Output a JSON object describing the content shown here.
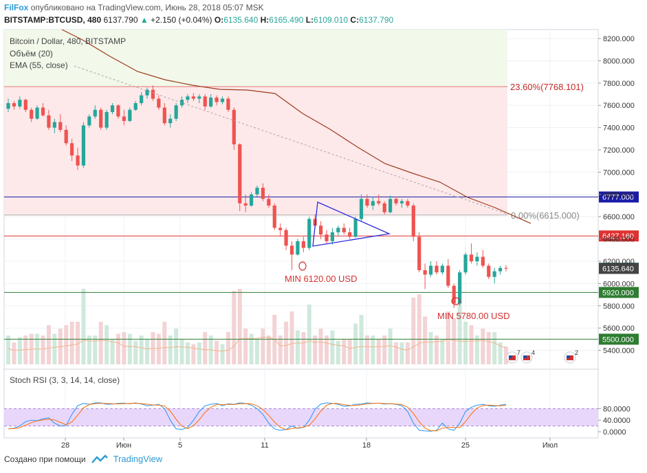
{
  "header": {
    "brand": "FilFox",
    "published": "опубликовано на TradingView.com, Июнь 28, 2018 05:07 MSK",
    "symbol": "BITSTAMP:BTCUSD, 480",
    "last": "6137.790",
    "change": "+2.150 (+0.04%)",
    "o_label": "O:",
    "o": "6135.640",
    "h_label": "H:",
    "h": "6165.490",
    "l_label": "L:",
    "l": "6109.010",
    "c_label": "C:",
    "c": "6137.790"
  },
  "legend": {
    "title": "Bitcoin / Dollar, 480, BITSTAMP",
    "volume": "Объём (20)",
    "ema": "EMA (55, close)"
  },
  "footer": {
    "created": "Создано при помощи",
    "tv": "TradingView"
  },
  "chart_data": {
    "type": "candlestick",
    "title": "Bitcoin / Dollar, 480, BITSTAMP",
    "price_axis": {
      "ticks": [
        "8200.000",
        "8000.000",
        "7800.000",
        "7600.000",
        "7400.000",
        "7200.000",
        "7000.000",
        "6800.000",
        "6600.000",
        "6400.000",
        "6200.000",
        "6000.000",
        "5800.000",
        "5600.000",
        "5400.000"
      ],
      "range": [
        5300,
        8250
      ]
    },
    "x_ticks": [
      "28",
      "Июн",
      "5",
      "11",
      "18",
      "25",
      "Июл"
    ],
    "price_labels": [
      {
        "value": 6777.0,
        "text": "6777.000",
        "color": "#1a1aa8"
      },
      {
        "value": 6427.16,
        "text": "6427.160",
        "color": "#e03131"
      },
      {
        "value": 6137.79,
        "text": "6137.790",
        "color": "#26a69a"
      },
      {
        "value": 6135.64,
        "text": "6135.640",
        "color": "#444444"
      },
      {
        "value": 5920.0,
        "text": "5920.000",
        "color": "#2e7d32"
      },
      {
        "value": 5500.0,
        "text": "5500.000",
        "color": "#2e7d32"
      }
    ],
    "fib_levels": [
      {
        "value": 7768.101,
        "text": "23.60%(7768.101)"
      },
      {
        "value": 6615.0,
        "text": "0.00%(6615.000)"
      }
    ],
    "annotations": [
      {
        "text": "MIN 6120.00 USD",
        "price": 6120
      },
      {
        "text": "MIN 5780.00 USD",
        "price": 5780
      }
    ],
    "events": [
      "7",
      "4",
      "2"
    ],
    "candles": [
      [
        7570,
        7660,
        7540,
        7620
      ],
      [
        7620,
        7640,
        7560,
        7590
      ],
      [
        7590,
        7680,
        7570,
        7650
      ],
      [
        7650,
        7660,
        7540,
        7560
      ],
      [
        7560,
        7580,
        7450,
        7480
      ],
      [
        7480,
        7600,
        7470,
        7580
      ],
      [
        7580,
        7620,
        7500,
        7510
      ],
      [
        7510,
        7560,
        7380,
        7400
      ],
      [
        7400,
        7480,
        7350,
        7450
      ],
      [
        7450,
        7520,
        7360,
        7380
      ],
      [
        7380,
        7420,
        7240,
        7260
      ],
      [
        7260,
        7300,
        7100,
        7150
      ],
      [
        7150,
        7220,
        7020,
        7060
      ],
      [
        7060,
        7450,
        7040,
        7420
      ],
      [
        7420,
        7520,
        7400,
        7500
      ],
      [
        7500,
        7600,
        7480,
        7560
      ],
      [
        7560,
        7580,
        7380,
        7400
      ],
      [
        7400,
        7560,
        7380,
        7540
      ],
      [
        7540,
        7620,
        7520,
        7600
      ],
      [
        7600,
        7610,
        7480,
        7500
      ],
      [
        7500,
        7560,
        7420,
        7460
      ],
      [
        7460,
        7580,
        7450,
        7560
      ],
      [
        7560,
        7640,
        7550,
        7620
      ],
      [
        7620,
        7720,
        7600,
        7690
      ],
      [
        7690,
        7760,
        7660,
        7740
      ],
      [
        7740,
        7780,
        7640,
        7660
      ],
      [
        7660,
        7690,
        7560,
        7580
      ],
      [
        7580,
        7620,
        7420,
        7440
      ],
      [
        7440,
        7520,
        7400,
        7480
      ],
      [
        7480,
        7620,
        7460,
        7600
      ],
      [
        7600,
        7680,
        7580,
        7650
      ],
      [
        7650,
        7700,
        7620,
        7680
      ],
      [
        7680,
        7710,
        7640,
        7660
      ],
      [
        7660,
        7700,
        7620,
        7680
      ],
      [
        7680,
        7700,
        7560,
        7590
      ],
      [
        7590,
        7700,
        7580,
        7670
      ],
      [
        7670,
        7690,
        7600,
        7630
      ],
      [
        7630,
        7680,
        7610,
        7660
      ],
      [
        7660,
        7680,
        7540,
        7560
      ],
      [
        7560,
        7580,
        7200,
        7250
      ],
      [
        7250,
        7260,
        6650,
        6720
      ],
      [
        6720,
        6800,
        6640,
        6700
      ],
      [
        6700,
        6820,
        6690,
        6800
      ],
      [
        6800,
        6880,
        6780,
        6860
      ],
      [
        6860,
        6900,
        6740,
        6760
      ],
      [
        6760,
        6800,
        6680,
        6700
      ],
      [
        6700,
        6720,
        6480,
        6500
      ],
      [
        6500,
        6540,
        6420,
        6480
      ],
      [
        6480,
        6500,
        6300,
        6340
      ],
      [
        6340,
        6380,
        6120,
        6260
      ],
      [
        6260,
        6400,
        6250,
        6380
      ],
      [
        6380,
        6420,
        6280,
        6320
      ],
      [
        6320,
        6600,
        6300,
        6580
      ],
      [
        6580,
        6620,
        6500,
        6520
      ],
      [
        6520,
        6560,
        6400,
        6440
      ],
      [
        6440,
        6480,
        6360,
        6380
      ],
      [
        6380,
        6500,
        6350,
        6460
      ],
      [
        6460,
        6520,
        6430,
        6500
      ],
      [
        6500,
        6540,
        6440,
        6460
      ],
      [
        6460,
        6500,
        6400,
        6420
      ],
      [
        6420,
        6600,
        6410,
        6580
      ],
      [
        6580,
        6800,
        6560,
        6760
      ],
      [
        6760,
        6800,
        6680,
        6700
      ],
      [
        6700,
        6780,
        6660,
        6740
      ],
      [
        6740,
        6800,
        6700,
        6720
      ],
      [
        6720,
        6740,
        6620,
        6640
      ],
      [
        6640,
        6790,
        6630,
        6760
      ],
      [
        6760,
        6780,
        6700,
        6720
      ],
      [
        6720,
        6760,
        6680,
        6740
      ],
      [
        6740,
        6760,
        6680,
        6700
      ],
      [
        6700,
        6720,
        6380,
        6420
      ],
      [
        6420,
        6460,
        6100,
        6120
      ],
      [
        6120,
        6180,
        5950,
        6080
      ],
      [
        6080,
        6200,
        6060,
        6160
      ],
      [
        6160,
        6200,
        6080,
        6100
      ],
      [
        6100,
        6180,
        6080,
        6160
      ],
      [
        6160,
        6220,
        5960,
        5980
      ],
      [
        5980,
        6000,
        5780,
        5820
      ],
      [
        5820,
        6120,
        5800,
        6100
      ],
      [
        6100,
        6280,
        6080,
        6260
      ],
      [
        6260,
        6360,
        6180,
        6200
      ],
      [
        6200,
        6280,
        6160,
        6240
      ],
      [
        6240,
        6300,
        6140,
        6160
      ],
      [
        6160,
        6180,
        6040,
        6060
      ],
      [
        6060,
        6140,
        6000,
        6110
      ],
      [
        6110,
        6160,
        6080,
        6140
      ],
      [
        6140,
        6165,
        6109,
        6138
      ]
    ]
  }
}
